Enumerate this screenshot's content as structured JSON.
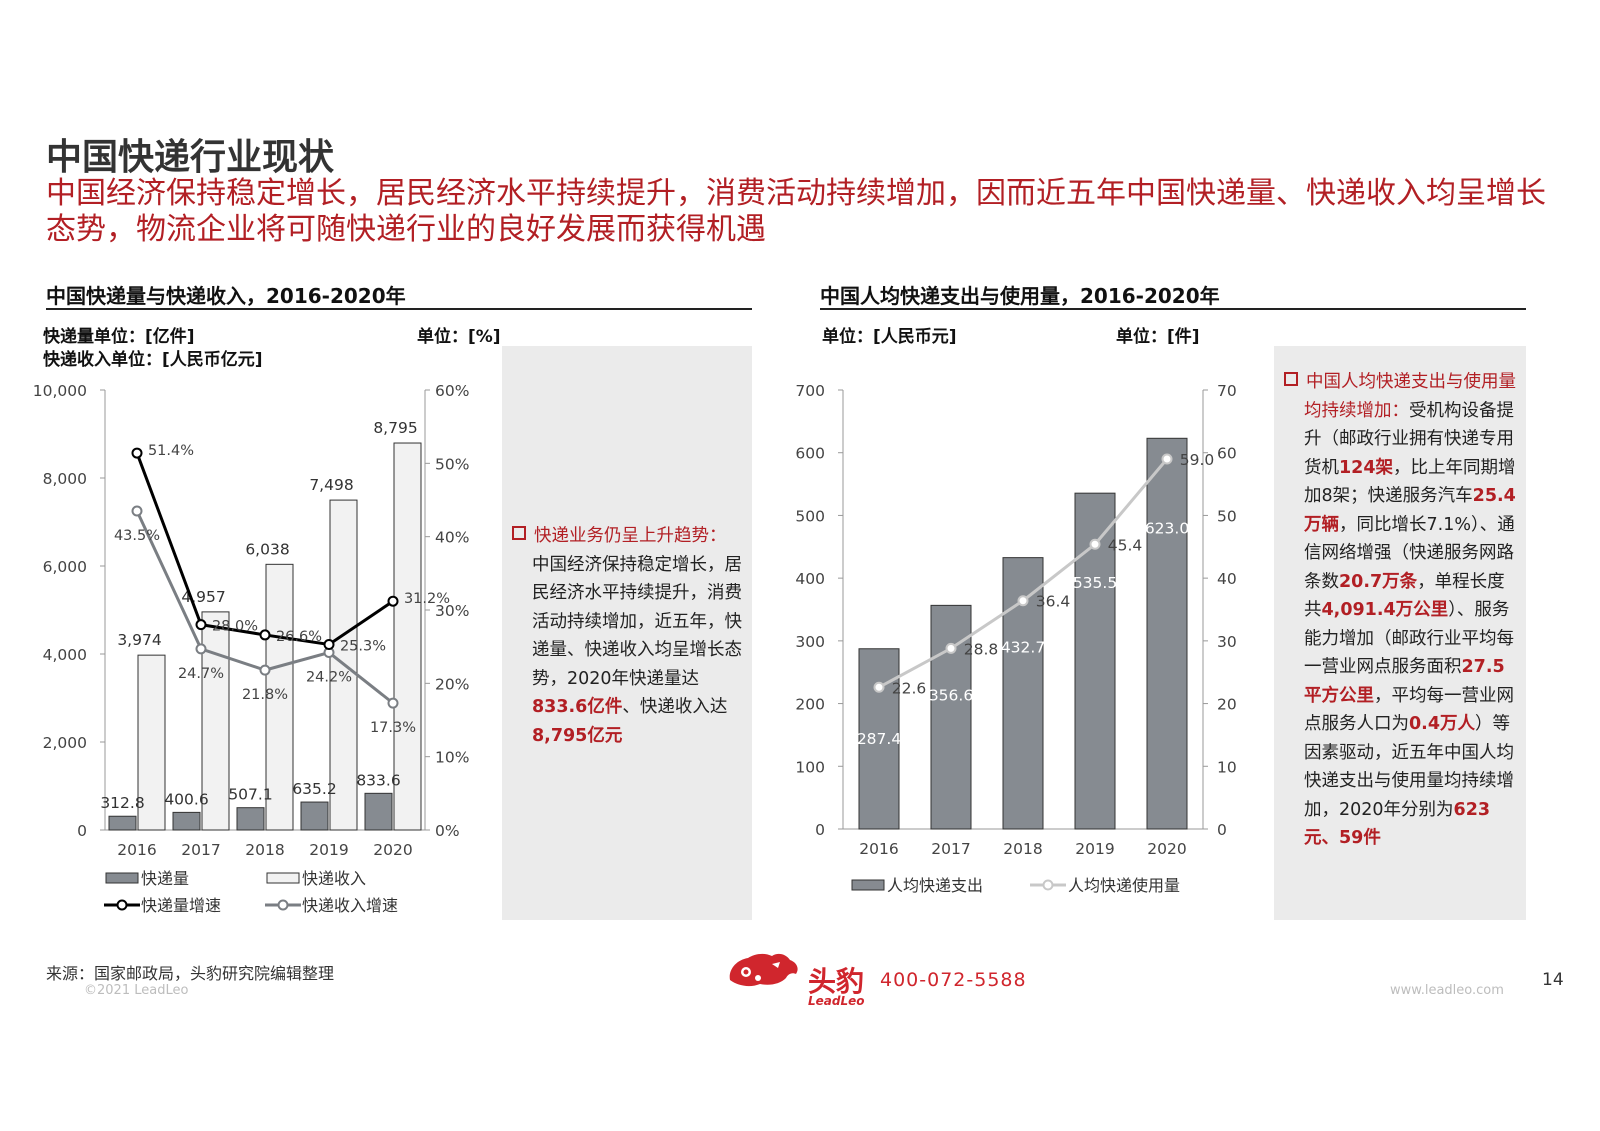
{
  "page": {
    "title": "中国快递行业现状",
    "subtitle": "中国经济保持稳定增长，居民经济水平持续提升，消费活动持续增加，因而近五年中国快递量、快递收入均呈增长态势，物流企业将可随快递行业的良好发展而获得机遇"
  },
  "left": {
    "chart_title": "中国快递量与快递收入，2016-2020年",
    "unit_volume": "快递量单位：[亿件]",
    "unit_revenue": "快递收入单位：[人民币亿元]",
    "unit_pct": "单位：[%]",
    "note": {
      "heading": "快递业务仍呈上升趋势：",
      "body": "中国经济保持稳定增长，居民经济水平持续提升，消费活动持续增加，近五年，快递量、快递收入均呈增长态势，2020年快递量达",
      "value1": "833.6亿件",
      "sep": "、快递收入达",
      "value2": "8,795亿元"
    }
  },
  "right": {
    "chart_title": "中国人均快递支出与使用量，2016-2020年",
    "unit_left": "单位：[人民币元]",
    "unit_right": "单位：[件]",
    "note": {
      "heading": "中国人均快递支出与使用量均持续增加：",
      "t1": "受机构设备提升（邮政行业拥有快递专用货机",
      "b1": "124架",
      "t2": "，比上年同期增加8架；快递服务汽车",
      "b2": "25.4万辆",
      "t3": "，同比增长7.1%）、通信网络增强（快递服务网路条数",
      "b3": "20.7万条",
      "t4": "，单程长度共",
      "b4": "4,091.4万公里",
      "t5": "）、服务能力增加（邮政行业平均每一营业网点服务面积",
      "b5": "27.5平方公里",
      "t6": "，平均每一营业网点服务人口为",
      "b6": "0.4万人",
      "t7": "）等因素驱动，近五年中国人均快递支出与使用量均持续增加，2020年分别为",
      "b7": "623元、59件"
    }
  },
  "footer": {
    "source": "来源：国家邮政局，头豹研究院编辑整理",
    "copyright": "©2021 LeadLeo",
    "brand_cn": "头豹",
    "brand_en": "LeadLeo",
    "phone": "400-072-5588",
    "website": "www.leadleo.com",
    "page_number": "14"
  },
  "colors": {
    "accent": "#b21f24",
    "bar_dark": "#868b91",
    "bar_light": "#f2f2f2",
    "line_light": "#c8c8c8"
  },
  "chart_data": [
    {
      "type": "bar+line",
      "categories": [
        "2016",
        "2017",
        "2018",
        "2019",
        "2020"
      ],
      "y_left_ticks": [
        "0",
        "2,000",
        "4,000",
        "6,000",
        "8,000",
        "10,000"
      ],
      "y_left_lim": [
        0,
        10000
      ],
      "y_right_ticks": [
        "0%",
        "10%",
        "20%",
        "30%",
        "40%",
        "50%",
        "60%"
      ],
      "y_right_lim": [
        0,
        60
      ],
      "series": [
        {
          "name": "快递量",
          "kind": "bar",
          "axis": "left",
          "values": [
            312.8,
            400.6,
            507.1,
            635.2,
            833.6
          ],
          "labels": [
            "312.8",
            "400.6",
            "507.1",
            "635.2",
            "833.6"
          ]
        },
        {
          "name": "快递收入",
          "kind": "bar",
          "axis": "left",
          "values": [
            3974,
            4957,
            6038,
            7498,
            8795
          ],
          "labels": [
            "3,974",
            "4,957",
            "6,038",
            "7,498",
            "8,795"
          ]
        },
        {
          "name": "快递量增速",
          "kind": "line",
          "axis": "right",
          "values": [
            51.4,
            28.0,
            26.6,
            25.3,
            31.2
          ],
          "labels": [
            "51.4%",
            "28.0%",
            "26.6%",
            "25.3%",
            "31.2%"
          ]
        },
        {
          "name": "快递收入增速",
          "kind": "line",
          "axis": "right",
          "values": [
            43.5,
            24.7,
            21.8,
            24.2,
            17.3
          ],
          "labels": [
            "43.5%",
            "24.7%",
            "21.8%",
            "24.2%",
            "17.3%"
          ]
        }
      ],
      "grid": false,
      "legend": "bottom"
    },
    {
      "type": "bar+line",
      "categories": [
        "2016",
        "2017",
        "2018",
        "2019",
        "2020"
      ],
      "y_left_ticks": [
        "0",
        "100",
        "200",
        "300",
        "400",
        "500",
        "600",
        "700"
      ],
      "y_left_lim": [
        0,
        700
      ],
      "y_right_ticks": [
        "0",
        "10",
        "20",
        "30",
        "40",
        "50",
        "60",
        "70"
      ],
      "y_right_lim": [
        0,
        70
      ],
      "series": [
        {
          "name": "人均快递支出",
          "kind": "bar",
          "axis": "left",
          "values": [
            287.4,
            356.6,
            432.7,
            535.5,
            623.0
          ],
          "labels": [
            "287.4",
            "356.6",
            "432.7",
            "535.5",
            "623.0"
          ]
        },
        {
          "name": "人均快递使用量",
          "kind": "line",
          "axis": "right",
          "values": [
            22.6,
            28.8,
            36.4,
            45.4,
            59.0
          ],
          "labels": [
            "22.6",
            "28.8",
            "36.4",
            "45.4",
            "59.0"
          ]
        }
      ],
      "grid": false,
      "legend": "bottom"
    }
  ]
}
